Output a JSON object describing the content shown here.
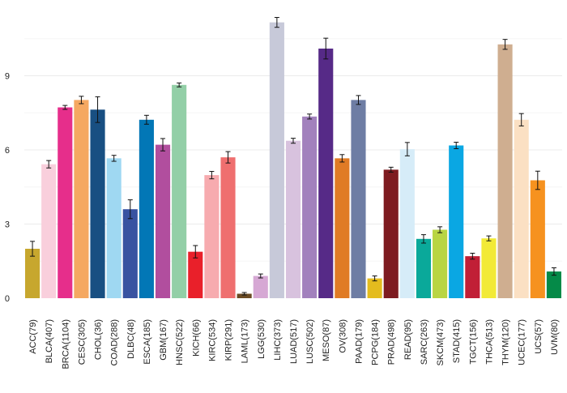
{
  "chart_data": {
    "type": "bar",
    "title": "",
    "xlabel": "",
    "ylabel": "",
    "ylim": [
      0,
      11.5
    ],
    "yticks": [
      0,
      3,
      6,
      9
    ],
    "grid": true,
    "legend": "none",
    "categories": [
      "ACC(79)",
      "BLCA(407)",
      "BRCA(1104)",
      "CESC(305)",
      "CHOL(36)",
      "COAD(288)",
      "DLBC(48)",
      "ESCA(185)",
      "GBM(167)",
      "HNSC(522)",
      "KICH(66)",
      "KIRC(534)",
      "KIRP(291)",
      "LAML(173)",
      "LGG(530)",
      "LIHC(373)",
      "LUAD(517)",
      "LUSC(502)",
      "MESO(87)",
      "OV(308)",
      "PAAD(179)",
      "PCPG(184)",
      "PRAD(498)",
      "READ(95)",
      "SARC(263)",
      "SKCM(473)",
      "STAD(415)",
      "TGCT(156)",
      "THCA(513)",
      "THYM(120)",
      "UCEC(177)",
      "UCS(57)",
      "UVM(80)"
    ],
    "values": [
      2.0,
      5.42,
      7.72,
      8.02,
      7.63,
      5.66,
      3.6,
      7.22,
      6.21,
      8.63,
      1.88,
      4.98,
      5.7,
      0.18,
      0.9,
      11.16,
      6.37,
      7.35,
      10.1,
      5.66,
      8.02,
      0.8,
      5.2,
      6.03,
      2.4,
      2.77,
      6.18,
      1.7,
      2.42,
      10.27,
      7.22,
      4.77,
      1.08
    ],
    "errors": [
      0.3,
      0.15,
      0.08,
      0.15,
      0.52,
      0.12,
      0.38,
      0.18,
      0.25,
      0.08,
      0.25,
      0.15,
      0.23,
      0.05,
      0.08,
      0.2,
      0.1,
      0.1,
      0.42,
      0.15,
      0.18,
      0.1,
      0.1,
      0.27,
      0.17,
      0.12,
      0.13,
      0.12,
      0.1,
      0.2,
      0.25,
      0.37,
      0.15
    ],
    "colors": [
      "#c7a72e",
      "#f9cfdc",
      "#e62e8b",
      "#f5a861",
      "#184f82",
      "#9fd8f2",
      "#3852a1",
      "#0277b6",
      "#b14e9e",
      "#93cfa7",
      "#e9202a",
      "#f7abaf",
      "#ef6f6f",
      "#6a4a23",
      "#d6a8d4",
      "#c7c9d9",
      "#d8c2de",
      "#a281bd",
      "#562a87",
      "#e07b25",
      "#6e7da4",
      "#e4bc1e",
      "#7e1b20",
      "#d6ecf8",
      "#0aa99a",
      "#b9d543",
      "#0aa7e3",
      "#c11f36",
      "#f2ea36",
      "#cfae90",
      "#fbe0c3",
      "#f6921f",
      "#058a48"
    ]
  }
}
